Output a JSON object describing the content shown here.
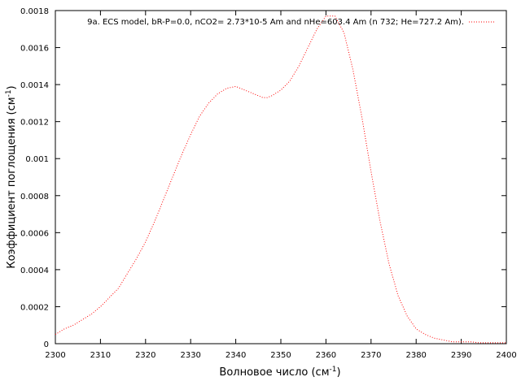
{
  "chart_data": {
    "type": "line",
    "xlabel": "Волновое число (см",
    "xlabel_sup": "-1",
    "xlabel_close": ")",
    "ylabel": "Коэффициент поглощения (см",
    "ylabel_sup": "-1",
    "ylabel_close": ")",
    "xlim": [
      2300,
      2400
    ],
    "ylim": [
      0,
      0.0018
    ],
    "x_ticks": [
      "2300",
      "2310",
      "2320",
      "2330",
      "2340",
      "2350",
      "2360",
      "2370",
      "2380",
      "2390",
      "2400"
    ],
    "y_ticks": [
      "0",
      "0.0002",
      "0.0004",
      "0.0006",
      "0.0008",
      "0.001",
      "0.0012",
      "0.0014",
      "0.0016",
      "0.0018"
    ],
    "grid": false,
    "legend_position": "top-right",
    "series": [
      {
        "name": "9a. ECS model, bR-P=0.0, nCO2= 2.73*10-5 Am and nHe=603.4 Am (n  732; He=727.2 Am).",
        "color": "#ff0000",
        "style": "dotted",
        "x": [
          2300,
          2302,
          2304,
          2306,
          2308,
          2310,
          2312,
          2314,
          2316,
          2318,
          2320,
          2322,
          2324,
          2326,
          2328,
          2330,
          2332,
          2334,
          2336,
          2338,
          2340,
          2342,
          2344,
          2346,
          2347,
          2348,
          2350,
          2352,
          2354,
          2356,
          2358,
          2360,
          2362,
          2364,
          2366,
          2368,
          2370,
          2372,
          2374,
          2376,
          2378,
          2380,
          2382,
          2384,
          2386,
          2388,
          2390,
          2392,
          2394,
          2396,
          2398,
          2400
        ],
        "y": [
          5e-05,
          8e-05,
          0.0001,
          0.00013,
          0.00016,
          0.0002,
          0.00025,
          0.0003,
          0.00038,
          0.00046,
          0.00055,
          0.00066,
          0.00078,
          0.0009,
          0.00102,
          0.00113,
          0.00123,
          0.0013,
          0.00135,
          0.00138,
          0.00139,
          0.00137,
          0.00135,
          0.00133,
          0.00133,
          0.00134,
          0.00137,
          0.00142,
          0.0015,
          0.0016,
          0.0017,
          0.00177,
          0.00177,
          0.00168,
          0.00148,
          0.00122,
          0.00093,
          0.00066,
          0.00043,
          0.00026,
          0.00015,
          8e-05,
          5e-05,
          3e-05,
          2e-05,
          1e-05,
          1e-05,
          1e-05,
          5e-06,
          5e-06,
          5e-06,
          5e-06
        ]
      }
    ]
  }
}
